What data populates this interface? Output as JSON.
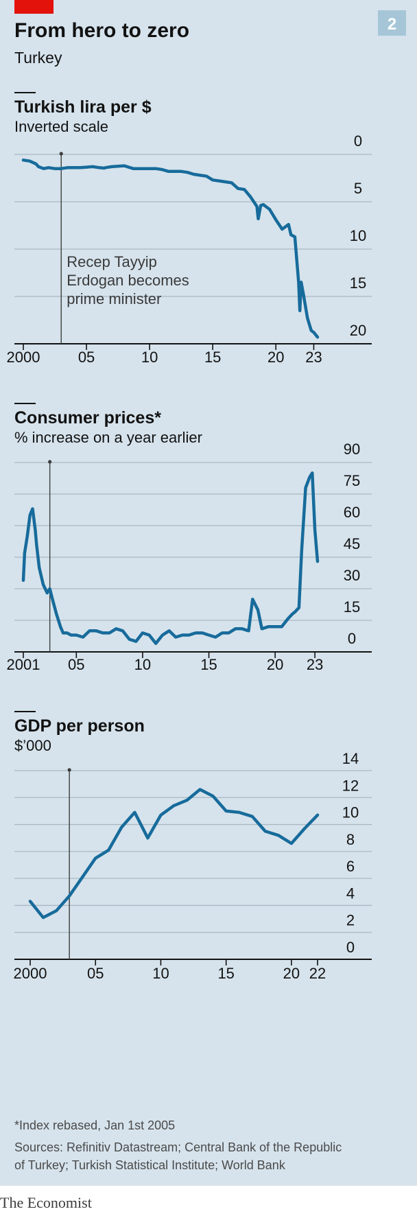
{
  "header": {
    "title": "From hero to zero",
    "subtitle": "Turkey",
    "badge": "2",
    "accent_color": "#e3120b"
  },
  "colors": {
    "panel": "#d6e3ec",
    "series": "#176b9b",
    "grid": "#a9b8c2"
  },
  "annotation": {
    "lines": [
      "Recep Tayyip",
      "Erdogan becomes",
      "prime minister"
    ],
    "year": 2003
  },
  "footer": {
    "note": "*Index rebased, Jan 1st 2005",
    "sources_1": "Sources: Refinitiv Datastream; Central Bank of the Republic",
    "sources_2": "of Turkey; Turkish Statistical Institute; World Bank",
    "brand": "The Economist"
  },
  "chart_data": [
    {
      "type": "line",
      "title": "Turkish lira per $",
      "subtitle": "Inverted scale",
      "y_inverted": true,
      "ylim": [
        0,
        20
      ],
      "yticks": [
        0,
        5,
        10,
        15,
        20
      ],
      "xlim": [
        2000,
        2023.5
      ],
      "xticks": [
        {
          "v": 2000,
          "label": "2000"
        },
        {
          "v": 2005,
          "label": "05"
        },
        {
          "v": 2010,
          "label": "10"
        },
        {
          "v": 2015,
          "label": "15"
        },
        {
          "v": 2020,
          "label": "20"
        },
        {
          "v": 2023,
          "label": "23"
        }
      ],
      "grid": true,
      "x": [
        2000,
        2000.5,
        2001,
        2001.2,
        2001.6,
        2002,
        2002.5,
        2003,
        2003.5,
        2004,
        2004.5,
        2005,
        2005.5,
        2006,
        2006.4,
        2006.5,
        2007,
        2007.5,
        2008,
        2008.7,
        2009,
        2009.5,
        2010,
        2010.5,
        2011,
        2011.5,
        2012,
        2012.5,
        2013,
        2013.5,
        2014,
        2014.5,
        2015,
        2015.5,
        2016,
        2016.5,
        2017,
        2017.5,
        2018,
        2018.5,
        2018.6,
        2018.8,
        2019,
        2019.5,
        2020,
        2020.5,
        2021,
        2021.2,
        2021.5,
        2021.8,
        2021.9,
        2022,
        2022.2,
        2022.5,
        2022.8,
        2023,
        2023.3
      ],
      "y": [
        0.6,
        0.7,
        1.0,
        1.3,
        1.5,
        1.4,
        1.5,
        1.5,
        1.4,
        1.4,
        1.4,
        1.35,
        1.3,
        1.4,
        1.45,
        1.4,
        1.3,
        1.25,
        1.2,
        1.5,
        1.5,
        1.5,
        1.5,
        1.5,
        1.6,
        1.8,
        1.8,
        1.8,
        1.9,
        2.1,
        2.2,
        2.3,
        2.7,
        2.8,
        2.9,
        3.0,
        3.6,
        3.7,
        4.5,
        5.5,
        6.8,
        5.4,
        5.3,
        5.8,
        6.9,
        7.9,
        7.4,
        8.5,
        8.7,
        13.5,
        16.5,
        13.5,
        14.9,
        17.3,
        18.6,
        18.8,
        19.3
      ]
    },
    {
      "type": "line",
      "title": "Consumer prices*",
      "subtitle": "% increase on a year earlier",
      "ylim": [
        0,
        90
      ],
      "yticks": [
        0,
        15,
        30,
        45,
        60,
        75,
        90
      ],
      "xlim": [
        2000.5,
        2023.5
      ],
      "xticks": [
        {
          "v": 2001,
          "label": "2001"
        },
        {
          "v": 2005,
          "label": "05"
        },
        {
          "v": 2010,
          "label": "10"
        },
        {
          "v": 2015,
          "label": "15"
        },
        {
          "v": 2020,
          "label": "20"
        },
        {
          "v": 2023,
          "label": "23"
        }
      ],
      "grid": true,
      "x": [
        2001,
        2001.1,
        2001.3,
        2001.5,
        2001.7,
        2001.9,
        2002,
        2002.2,
        2002.5,
        2002.8,
        2003,
        2003.2,
        2003.5,
        2003.8,
        2004,
        2004.3,
        2004.6,
        2005,
        2005.5,
        2006,
        2006.5,
        2007,
        2007.5,
        2008,
        2008.5,
        2009,
        2009.5,
        2010,
        2010.5,
        2011,
        2011.5,
        2012,
        2012.5,
        2013,
        2013.5,
        2014,
        2014.5,
        2015,
        2015.5,
        2016,
        2016.5,
        2017,
        2017.5,
        2018,
        2018.3,
        2018.7,
        2019,
        2019.5,
        2020,
        2020.5,
        2021,
        2021.3,
        2021.5,
        2021.8,
        2022,
        2022.3,
        2022.6,
        2022.8,
        2023,
        2023.2
      ],
      "y": [
        34,
        47,
        55,
        65,
        68,
        58,
        51,
        40,
        32,
        28,
        30,
        25,
        18,
        12,
        9,
        9,
        8,
        8,
        7,
        10,
        10,
        9,
        9,
        11,
        10,
        6,
        5,
        9,
        8,
        4,
        8,
        10,
        7,
        8,
        8,
        9,
        9,
        8,
        7,
        9,
        9,
        11,
        11,
        10,
        25,
        20,
        11,
        12,
        12,
        12,
        16,
        18,
        19,
        21,
        48,
        78,
        83,
        85,
        58,
        43
      ]
    },
    {
      "type": "line",
      "title": "GDP per person",
      "subtitle": "$’000",
      "ylim": [
        0,
        14
      ],
      "yticks": [
        0,
        2,
        4,
        6,
        8,
        10,
        12,
        14
      ],
      "xlim": [
        1999.5,
        2023
      ],
      "xticks": [
        {
          "v": 2000,
          "label": "2000"
        },
        {
          "v": 2005,
          "label": "05"
        },
        {
          "v": 2010,
          "label": "10"
        },
        {
          "v": 2015,
          "label": "15"
        },
        {
          "v": 2020,
          "label": "20"
        },
        {
          "v": 2022,
          "label": "22"
        }
      ],
      "grid": true,
      "x": [
        2000,
        2001,
        2002,
        2003,
        2004,
        2005,
        2006,
        2007,
        2008,
        2009,
        2010,
        2011,
        2012,
        2013,
        2014,
        2015,
        2016,
        2017,
        2018,
        2019,
        2020,
        2021,
        2022
      ],
      "y": [
        4.3,
        3.1,
        3.6,
        4.7,
        6.1,
        7.5,
        8.1,
        9.8,
        10.9,
        9.0,
        10.7,
        11.4,
        11.8,
        12.6,
        12.1,
        11.0,
        10.9,
        10.6,
        9.5,
        9.2,
        8.6,
        9.7,
        10.7
      ]
    }
  ]
}
